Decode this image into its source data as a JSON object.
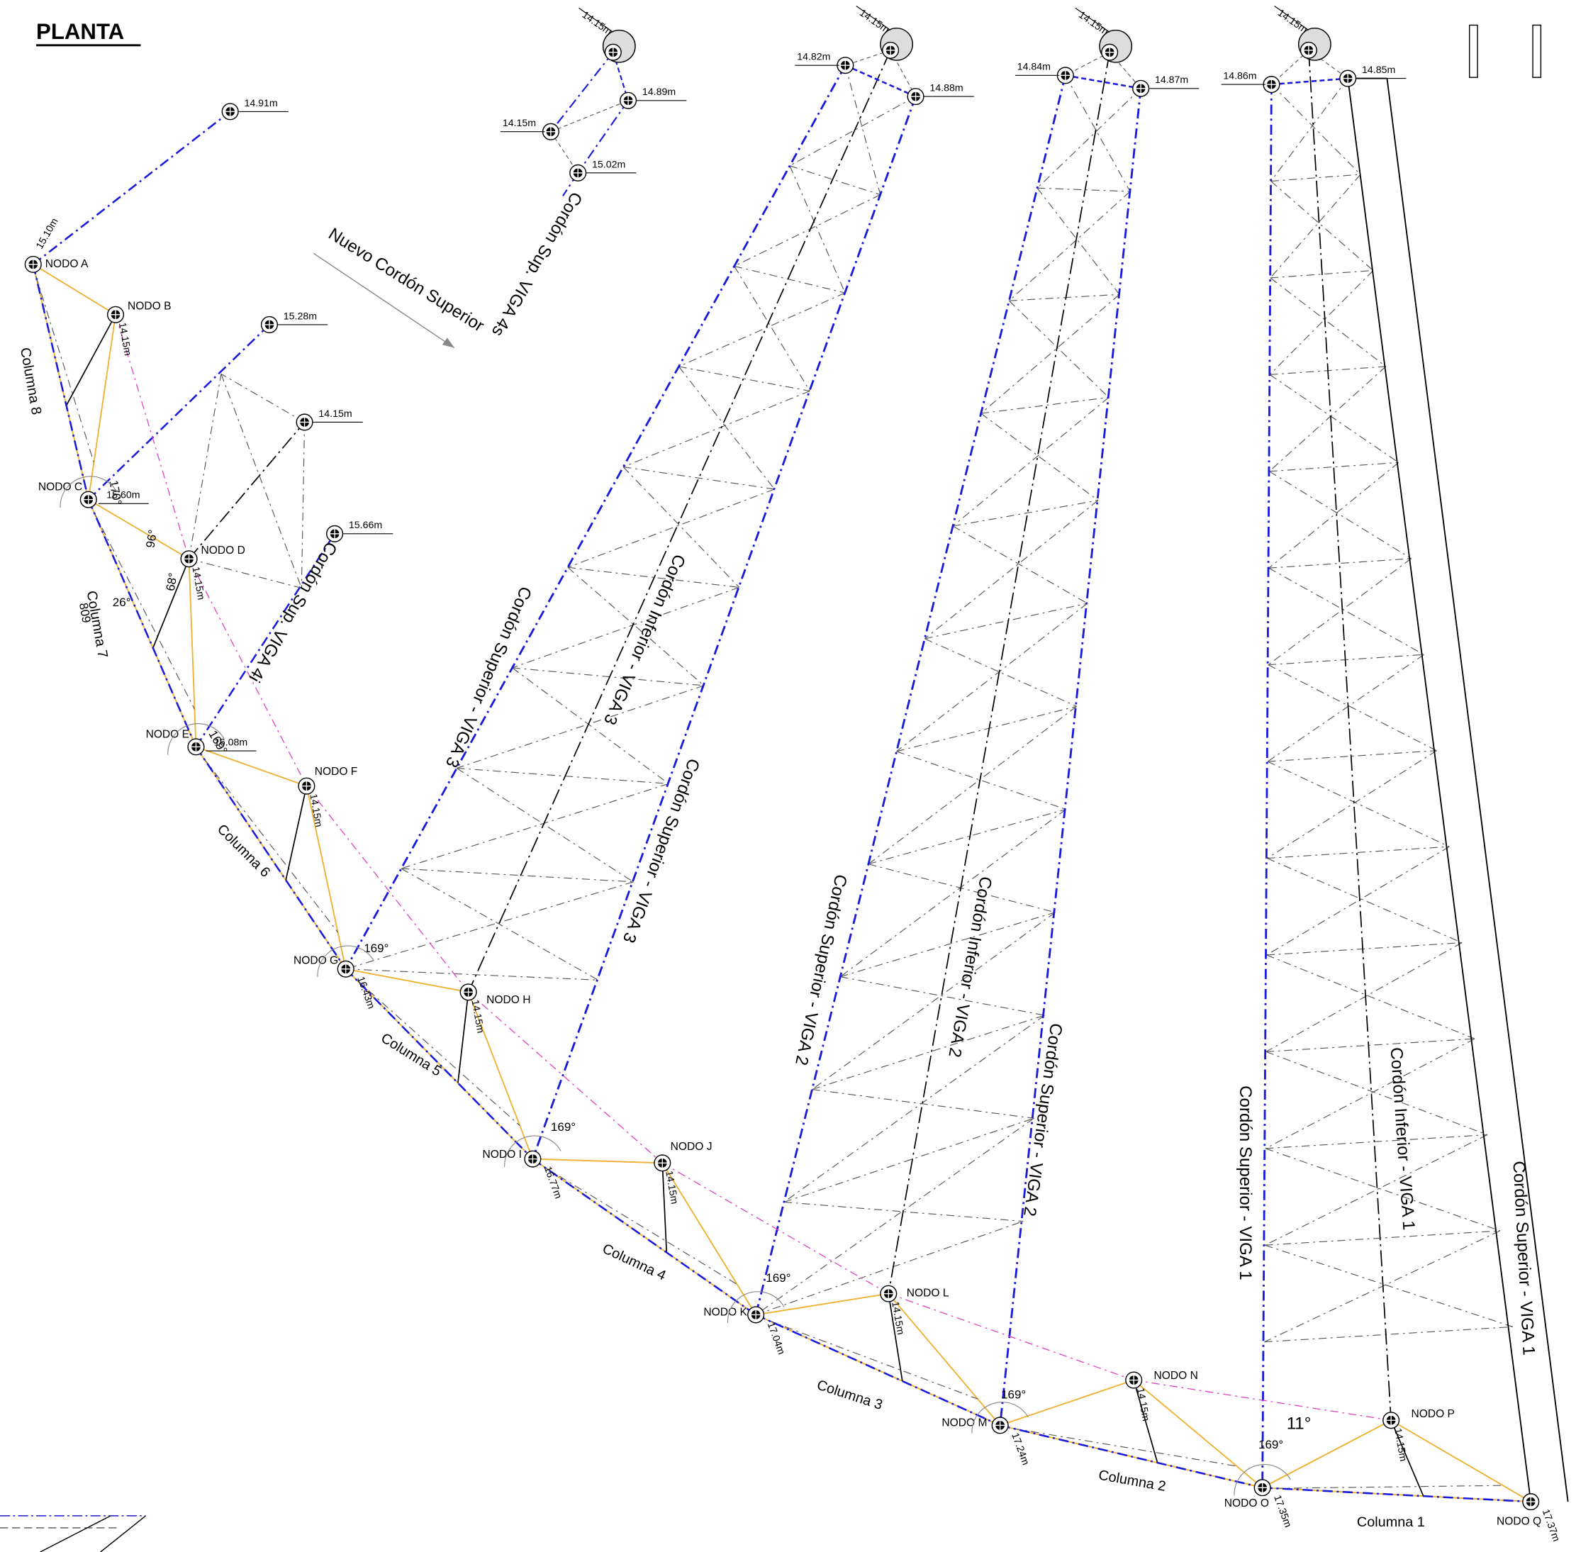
{
  "header": {
    "title": "PLANTA"
  },
  "nodes": [
    {
      "label": "NODO A",
      "elevation": "15.10m"
    },
    {
      "label": "NODO B",
      "elevation": "14.15m"
    },
    {
      "label": "NODO C",
      "elevation": "15.60m"
    },
    {
      "label": "NODO D",
      "elevation": "14.15m"
    },
    {
      "label": "NODO E",
      "elevation": "16.08m"
    },
    {
      "label": "NODO F",
      "elevation": "14.15m"
    },
    {
      "label": "NODO G",
      "elevation": "16.43m"
    },
    {
      "label": "NODO H",
      "elevation": "14.15m"
    },
    {
      "label": "NODO I",
      "elevation": "16.77m"
    },
    {
      "label": "NODO J",
      "elevation": "14.15m"
    },
    {
      "label": "NODO K",
      "elevation": "17.04m"
    },
    {
      "label": "NODO L",
      "elevation": "14.15m"
    },
    {
      "label": "NODO M",
      "elevation": "17.24m"
    },
    {
      "label": "NODO N",
      "elevation": "14.15m"
    },
    {
      "label": "NODO O",
      "elevation": "17.35m"
    },
    {
      "label": "NODO P",
      "elevation": "14.15m"
    },
    {
      "label": "NODO Q",
      "elevation": "17.37m"
    }
  ],
  "points": [
    {
      "elevation": "14.91m"
    },
    {
      "elevation": "15.28m"
    },
    {
      "elevation": "14.15m"
    },
    {
      "elevation": "15.66m"
    },
    {
      "elevation": "14.15m"
    },
    {
      "elevation": "14.89m"
    },
    {
      "elevation": "14.15m"
    },
    {
      "elevation": "15.02m"
    },
    {
      "elevation": "14.82m"
    },
    {
      "elevation": "14.15m"
    },
    {
      "elevation": "14.88m"
    },
    {
      "elevation": "14.84m"
    },
    {
      "elevation": "14.15m"
    },
    {
      "elevation": "14.87m"
    },
    {
      "elevation": "14.86m"
    },
    {
      "elevation": "14.15m"
    },
    {
      "elevation": "14.85m"
    }
  ],
  "beam_labels": [
    "Cordón Sup. VIGA 4s",
    "Nuevo Cordón Superior",
    "Cordón Sup. VIGA 4i",
    "Cordón Superior - VIGA 3",
    "Cordón Inferior - VIGA 3",
    "Cordón Superior - VIGA 3",
    "Cordón Superior - VIGA 2",
    "Cordón Inferior - VIGA 2",
    "Cordón Superior - VIGA 2",
    "Cordón Superior - VIGA 1",
    "Cordón Inferior - VIGA 1",
    "Cordón Superior - VIGA 1"
  ],
  "columns": [
    "Columna 1",
    "Columna 2",
    "Columna 3",
    "Columna 4",
    "Columna 5",
    "Columna 6",
    "Columna 7",
    "Columna 8"
  ],
  "angles": [
    "170°",
    "96°",
    "68°",
    "26°",
    "809",
    "169°",
    "169°",
    "169°",
    "169°",
    "169°",
    "169°",
    "11°"
  ]
}
